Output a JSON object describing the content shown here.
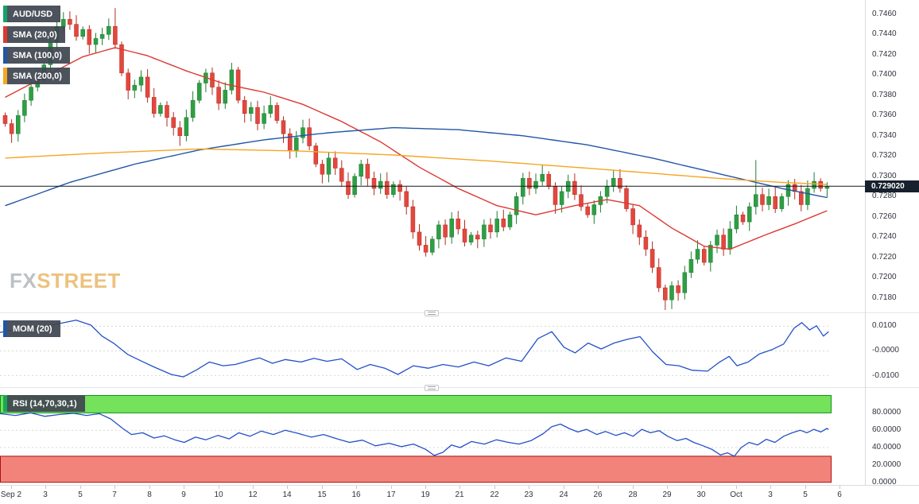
{
  "window": {
    "title": "AUD/USD chart"
  },
  "main_panel": {
    "legends": [
      {
        "label": "AUD/USD",
        "stripe": "#16a06a"
      },
      {
        "label": "SMA (20,0)",
        "stripe": "#dc3931"
      },
      {
        "label": "SMA (100,0)",
        "stripe": "#2156a5"
      },
      {
        "label": "SMA (200,0)",
        "stripe": "#f5a623"
      }
    ],
    "y_tick_labels": [
      "0.7460",
      "0.7440",
      "0.7420",
      "0.7400",
      "0.7380",
      "0.7360",
      "0.7340",
      "0.7320",
      "0.7300",
      "0.7280",
      "0.7260",
      "0.7240",
      "0.7220",
      "0.7200",
      "0.7180"
    ],
    "price_label": "0.729020",
    "watermark": {
      "fx": "FX",
      "street": "STREET"
    }
  },
  "mom_panel": {
    "legend": {
      "label": "MOM (20)",
      "stripe": "#2156a5"
    },
    "y_tick_labels": [
      "0.0100",
      "-0.0000",
      "-0.0100"
    ]
  },
  "rsi_panel": {
    "legend": {
      "label": "RSI (14,70,30,1)",
      "stripe": "#18a558"
    },
    "y_tick_labels": [
      "80.0000",
      "60.0000",
      "40.0000",
      "20.0000",
      "0.0000"
    ]
  },
  "chart_data": [
    {
      "type": "candlestick",
      "title": "AUD/USD",
      "ylim": [
        0.7168,
        0.7474
      ],
      "last_price": 0.72902,
      "open_first": 0.736,
      "colors": {
        "up": "#2f9e44",
        "up_border": "#1e7d33",
        "down": "#e4473d",
        "down_border": "#b32b22"
      },
      "x_tick_labels": [
        "Sep 2",
        "3",
        "5",
        "7",
        "8",
        "9",
        "10",
        "12",
        "14",
        "15",
        "16",
        "17",
        "19",
        "21",
        "22",
        "23",
        "24",
        "26",
        "28",
        "29",
        "30",
        "Oct",
        "3",
        "5",
        "6"
      ],
      "closes": [
        0.7352,
        0.7342,
        0.736,
        0.7375,
        0.7388,
        0.7395,
        0.741,
        0.7432,
        0.7448,
        0.7455,
        0.745,
        0.7438,
        0.7445,
        0.743,
        0.7436,
        0.744,
        0.7448,
        0.743,
        0.7402,
        0.7385,
        0.739,
        0.7398,
        0.7378,
        0.7362,
        0.737,
        0.7358,
        0.7348,
        0.734,
        0.7358,
        0.7375,
        0.7392,
        0.7402,
        0.7388,
        0.7372,
        0.7385,
        0.7405,
        0.7375,
        0.7362,
        0.7368,
        0.7352,
        0.7362,
        0.737,
        0.7355,
        0.7342,
        0.7325,
        0.7338,
        0.7348,
        0.733,
        0.7312,
        0.7302,
        0.7318,
        0.7308,
        0.7295,
        0.7282,
        0.73,
        0.7312,
        0.7298,
        0.7288,
        0.7295,
        0.7282,
        0.7292,
        0.7285,
        0.727,
        0.7245,
        0.7232,
        0.7225,
        0.7238,
        0.7252,
        0.724,
        0.7258,
        0.7248,
        0.7235,
        0.7242,
        0.7238,
        0.7252,
        0.7245,
        0.7258,
        0.725,
        0.7262,
        0.728,
        0.7298,
        0.7288,
        0.7295,
        0.7302,
        0.729,
        0.7272,
        0.7285,
        0.7295,
        0.7282,
        0.727,
        0.7262,
        0.7272,
        0.728,
        0.729,
        0.7298,
        0.7288,
        0.7268,
        0.7252,
        0.724,
        0.7228,
        0.721,
        0.719,
        0.7178,
        0.7192,
        0.7185,
        0.7205,
        0.7218,
        0.7228,
        0.7215,
        0.7232,
        0.7242,
        0.7228,
        0.7248,
        0.7262,
        0.7255,
        0.727,
        0.7282,
        0.7272,
        0.728,
        0.7268,
        0.728,
        0.7292,
        0.7285,
        0.7272,
        0.7288,
        0.7295,
        0.7288,
        0.729
      ],
      "spikes": [
        {
          "i": 9,
          "high": 0.7462
        },
        {
          "i": 17,
          "high": 0.7466
        },
        {
          "i": 27,
          "low": 0.733
        },
        {
          "i": 35,
          "high": 0.7412
        },
        {
          "i": 102,
          "low": 0.7168
        },
        {
          "i": 116,
          "high": 0.7316
        }
      ],
      "series": [
        {
          "name": "SMA (20,0)",
          "color": "#dc3931",
          "anchors": [
            [
              0,
              0.7378
            ],
            [
              6,
              0.7398
            ],
            [
              12,
              0.7418
            ],
            [
              17,
              0.7427
            ],
            [
              22,
              0.7419
            ],
            [
              28,
              0.7404
            ],
            [
              34,
              0.7391
            ],
            [
              40,
              0.7383
            ],
            [
              46,
              0.7371
            ],
            [
              52,
              0.7354
            ],
            [
              58,
              0.7334
            ],
            [
              64,
              0.7309
            ],
            [
              70,
              0.7288
            ],
            [
              76,
              0.7271
            ],
            [
              82,
              0.7262
            ],
            [
              88,
              0.7271
            ],
            [
              93,
              0.7277
            ],
            [
              98,
              0.7271
            ],
            [
              103,
              0.7249
            ],
            [
              108,
              0.7231
            ],
            [
              112,
              0.7228
            ],
            [
              117,
              0.7241
            ],
            [
              122,
              0.7253
            ],
            [
              127,
              0.7266
            ]
          ]
        },
        {
          "name": "SMA (100,0)",
          "color": "#2156a5",
          "anchors": [
            [
              0,
              0.7271
            ],
            [
              10,
              0.7294
            ],
            [
              20,
              0.7312
            ],
            [
              30,
              0.7326
            ],
            [
              40,
              0.7336
            ],
            [
              50,
              0.7343
            ],
            [
              60,
              0.7348
            ],
            [
              70,
              0.7346
            ],
            [
              80,
              0.734
            ],
            [
              90,
              0.7331
            ],
            [
              100,
              0.7318
            ],
            [
              108,
              0.7306
            ],
            [
              114,
              0.7297
            ],
            [
              120,
              0.7288
            ],
            [
              127,
              0.7279
            ]
          ]
        },
        {
          "name": "SMA (200,0)",
          "color": "#f5a623",
          "anchors": [
            [
              0,
              0.7318
            ],
            [
              15,
              0.7323
            ],
            [
              30,
              0.7327
            ],
            [
              45,
              0.7325
            ],
            [
              60,
              0.7321
            ],
            [
              75,
              0.7315
            ],
            [
              90,
              0.7308
            ],
            [
              100,
              0.7303
            ],
            [
              110,
              0.7298
            ],
            [
              120,
              0.7294
            ],
            [
              127,
              0.7292
            ]
          ]
        }
      ]
    },
    {
      "type": "line",
      "title": "MOM (20)",
      "color": "#2350c8",
      "ylim": [
        -0.0137,
        0.014
      ],
      "y_tick_labels": [
        "0.0100",
        "-0.0000",
        "-0.0100"
      ],
      "points": [
        [
          0,
          0.0075
        ],
        [
          0.03,
          0.0095
        ],
        [
          0.06,
          0.0105
        ],
        [
          0.088,
          0.0125
        ],
        [
          0.105,
          0.0105
        ],
        [
          0.118,
          0.006
        ],
        [
          0.132,
          0.003
        ],
        [
          0.148,
          -0.0015
        ],
        [
          0.163,
          -0.004
        ],
        [
          0.178,
          -0.0065
        ],
        [
          0.198,
          -0.0095
        ],
        [
          0.212,
          -0.0105
        ],
        [
          0.228,
          -0.0075
        ],
        [
          0.242,
          -0.0045
        ],
        [
          0.258,
          -0.006
        ],
        [
          0.272,
          -0.0055
        ],
        [
          0.287,
          -0.004
        ],
        [
          0.3,
          -0.0028
        ],
        [
          0.315,
          -0.005
        ],
        [
          0.33,
          -0.0035
        ],
        [
          0.348,
          -0.0045
        ],
        [
          0.363,
          -0.003
        ],
        [
          0.378,
          -0.0042
        ],
        [
          0.395,
          -0.0032
        ],
        [
          0.413,
          -0.0075
        ],
        [
          0.428,
          -0.0055
        ],
        [
          0.445,
          -0.007
        ],
        [
          0.46,
          -0.0095
        ],
        [
          0.478,
          -0.006
        ],
        [
          0.495,
          -0.007
        ],
        [
          0.512,
          -0.0055
        ],
        [
          0.53,
          -0.0065
        ],
        [
          0.548,
          -0.0045
        ],
        [
          0.565,
          -0.006
        ],
        [
          0.585,
          -0.0028
        ],
        [
          0.603,
          -0.0042
        ],
        [
          0.622,
          0.005
        ],
        [
          0.638,
          0.0078
        ],
        [
          0.652,
          0.0015
        ],
        [
          0.665,
          -0.0008
        ],
        [
          0.68,
          0.0032
        ],
        [
          0.695,
          0.0008
        ],
        [
          0.71,
          0.0032
        ],
        [
          0.726,
          0.0048
        ],
        [
          0.74,
          0.0058
        ],
        [
          0.755,
          -0.0005
        ],
        [
          0.77,
          -0.0055
        ],
        [
          0.785,
          -0.006
        ],
        [
          0.8,
          -0.0078
        ],
        [
          0.818,
          -0.0082
        ],
        [
          0.832,
          -0.0045
        ],
        [
          0.843,
          -0.0022
        ],
        [
          0.852,
          -0.006
        ],
        [
          0.865,
          -0.0045
        ],
        [
          0.878,
          -0.0012
        ],
        [
          0.893,
          0.0006
        ],
        [
          0.906,
          0.0028
        ],
        [
          0.918,
          0.0092
        ],
        [
          0.927,
          0.0115
        ],
        [
          0.936,
          0.0085
        ],
        [
          0.944,
          0.0102
        ],
        [
          0.952,
          0.006
        ],
        [
          0.958,
          0.0078
        ]
      ]
    },
    {
      "type": "line",
      "title": "RSI (14,70,30,1)",
      "color": "#2350c8",
      "ylim": [
        -3,
        105
      ],
      "y_tick_labels": [
        "80.0000",
        "60.0000",
        "40.0000",
        "20.0000",
        "0.0000"
      ],
      "zones": [
        {
          "from": 80,
          "to": 100,
          "fill": "#74e25b",
          "border": "#119117"
        },
        {
          "from": 0,
          "to": 30,
          "fill": "#f2837b",
          "border": "#aa1111"
        }
      ],
      "grid_values": [
        60,
        40
      ],
      "points": [
        [
          0,
          79
        ],
        [
          0.018,
          77
        ],
        [
          0.035,
          80
        ],
        [
          0.052,
          76
        ],
        [
          0.068,
          78
        ],
        [
          0.085,
          79.5
        ],
        [
          0.1,
          77
        ],
        [
          0.115,
          79
        ],
        [
          0.128,
          73
        ],
        [
          0.142,
          62
        ],
        [
          0.152,
          55
        ],
        [
          0.165,
          57
        ],
        [
          0.178,
          51
        ],
        [
          0.19,
          53.5
        ],
        [
          0.202,
          49
        ],
        [
          0.213,
          46
        ],
        [
          0.226,
          52
        ],
        [
          0.238,
          49
        ],
        [
          0.252,
          54
        ],
        [
          0.265,
          50
        ],
        [
          0.276,
          57
        ],
        [
          0.289,
          53
        ],
        [
          0.302,
          59
        ],
        [
          0.316,
          55
        ],
        [
          0.33,
          60
        ],
        [
          0.344,
          56.5
        ],
        [
          0.36,
          52
        ],
        [
          0.374,
          55
        ],
        [
          0.39,
          50
        ],
        [
          0.404,
          46
        ],
        [
          0.419,
          48.5
        ],
        [
          0.434,
          42
        ],
        [
          0.45,
          45
        ],
        [
          0.464,
          41
        ],
        [
          0.478,
          44
        ],
        [
          0.492,
          38
        ],
        [
          0.502,
          31
        ],
        [
          0.512,
          34.5
        ],
        [
          0.522,
          43
        ],
        [
          0.532,
          40
        ],
        [
          0.545,
          47
        ],
        [
          0.56,
          44
        ],
        [
          0.574,
          49
        ],
        [
          0.588,
          46
        ],
        [
          0.6,
          44
        ],
        [
          0.614,
          48
        ],
        [
          0.628,
          56
        ],
        [
          0.638,
          64
        ],
        [
          0.648,
          67
        ],
        [
          0.658,
          62
        ],
        [
          0.668,
          58
        ],
        [
          0.678,
          61
        ],
        [
          0.69,
          55
        ],
        [
          0.7,
          58.5
        ],
        [
          0.712,
          54
        ],
        [
          0.722,
          57
        ],
        [
          0.732,
          53
        ],
        [
          0.742,
          61
        ],
        [
          0.752,
          57
        ],
        [
          0.762,
          59.5
        ],
        [
          0.772,
          53
        ],
        [
          0.783,
          48
        ],
        [
          0.793,
          50.5
        ],
        [
          0.802,
          46
        ],
        [
          0.813,
          42
        ],
        [
          0.823,
          38
        ],
        [
          0.833,
          31.5
        ],
        [
          0.841,
          34
        ],
        [
          0.849,
          30
        ],
        [
          0.857,
          40
        ],
        [
          0.866,
          46
        ],
        [
          0.876,
          43
        ],
        [
          0.886,
          49.5
        ],
        [
          0.896,
          46
        ],
        [
          0.906,
          53
        ],
        [
          0.916,
          57
        ],
        [
          0.925,
          60
        ],
        [
          0.933,
          57
        ],
        [
          0.941,
          61
        ],
        [
          0.949,
          58
        ],
        [
          0.956,
          62
        ],
        [
          0.958,
          61
        ]
      ]
    }
  ]
}
